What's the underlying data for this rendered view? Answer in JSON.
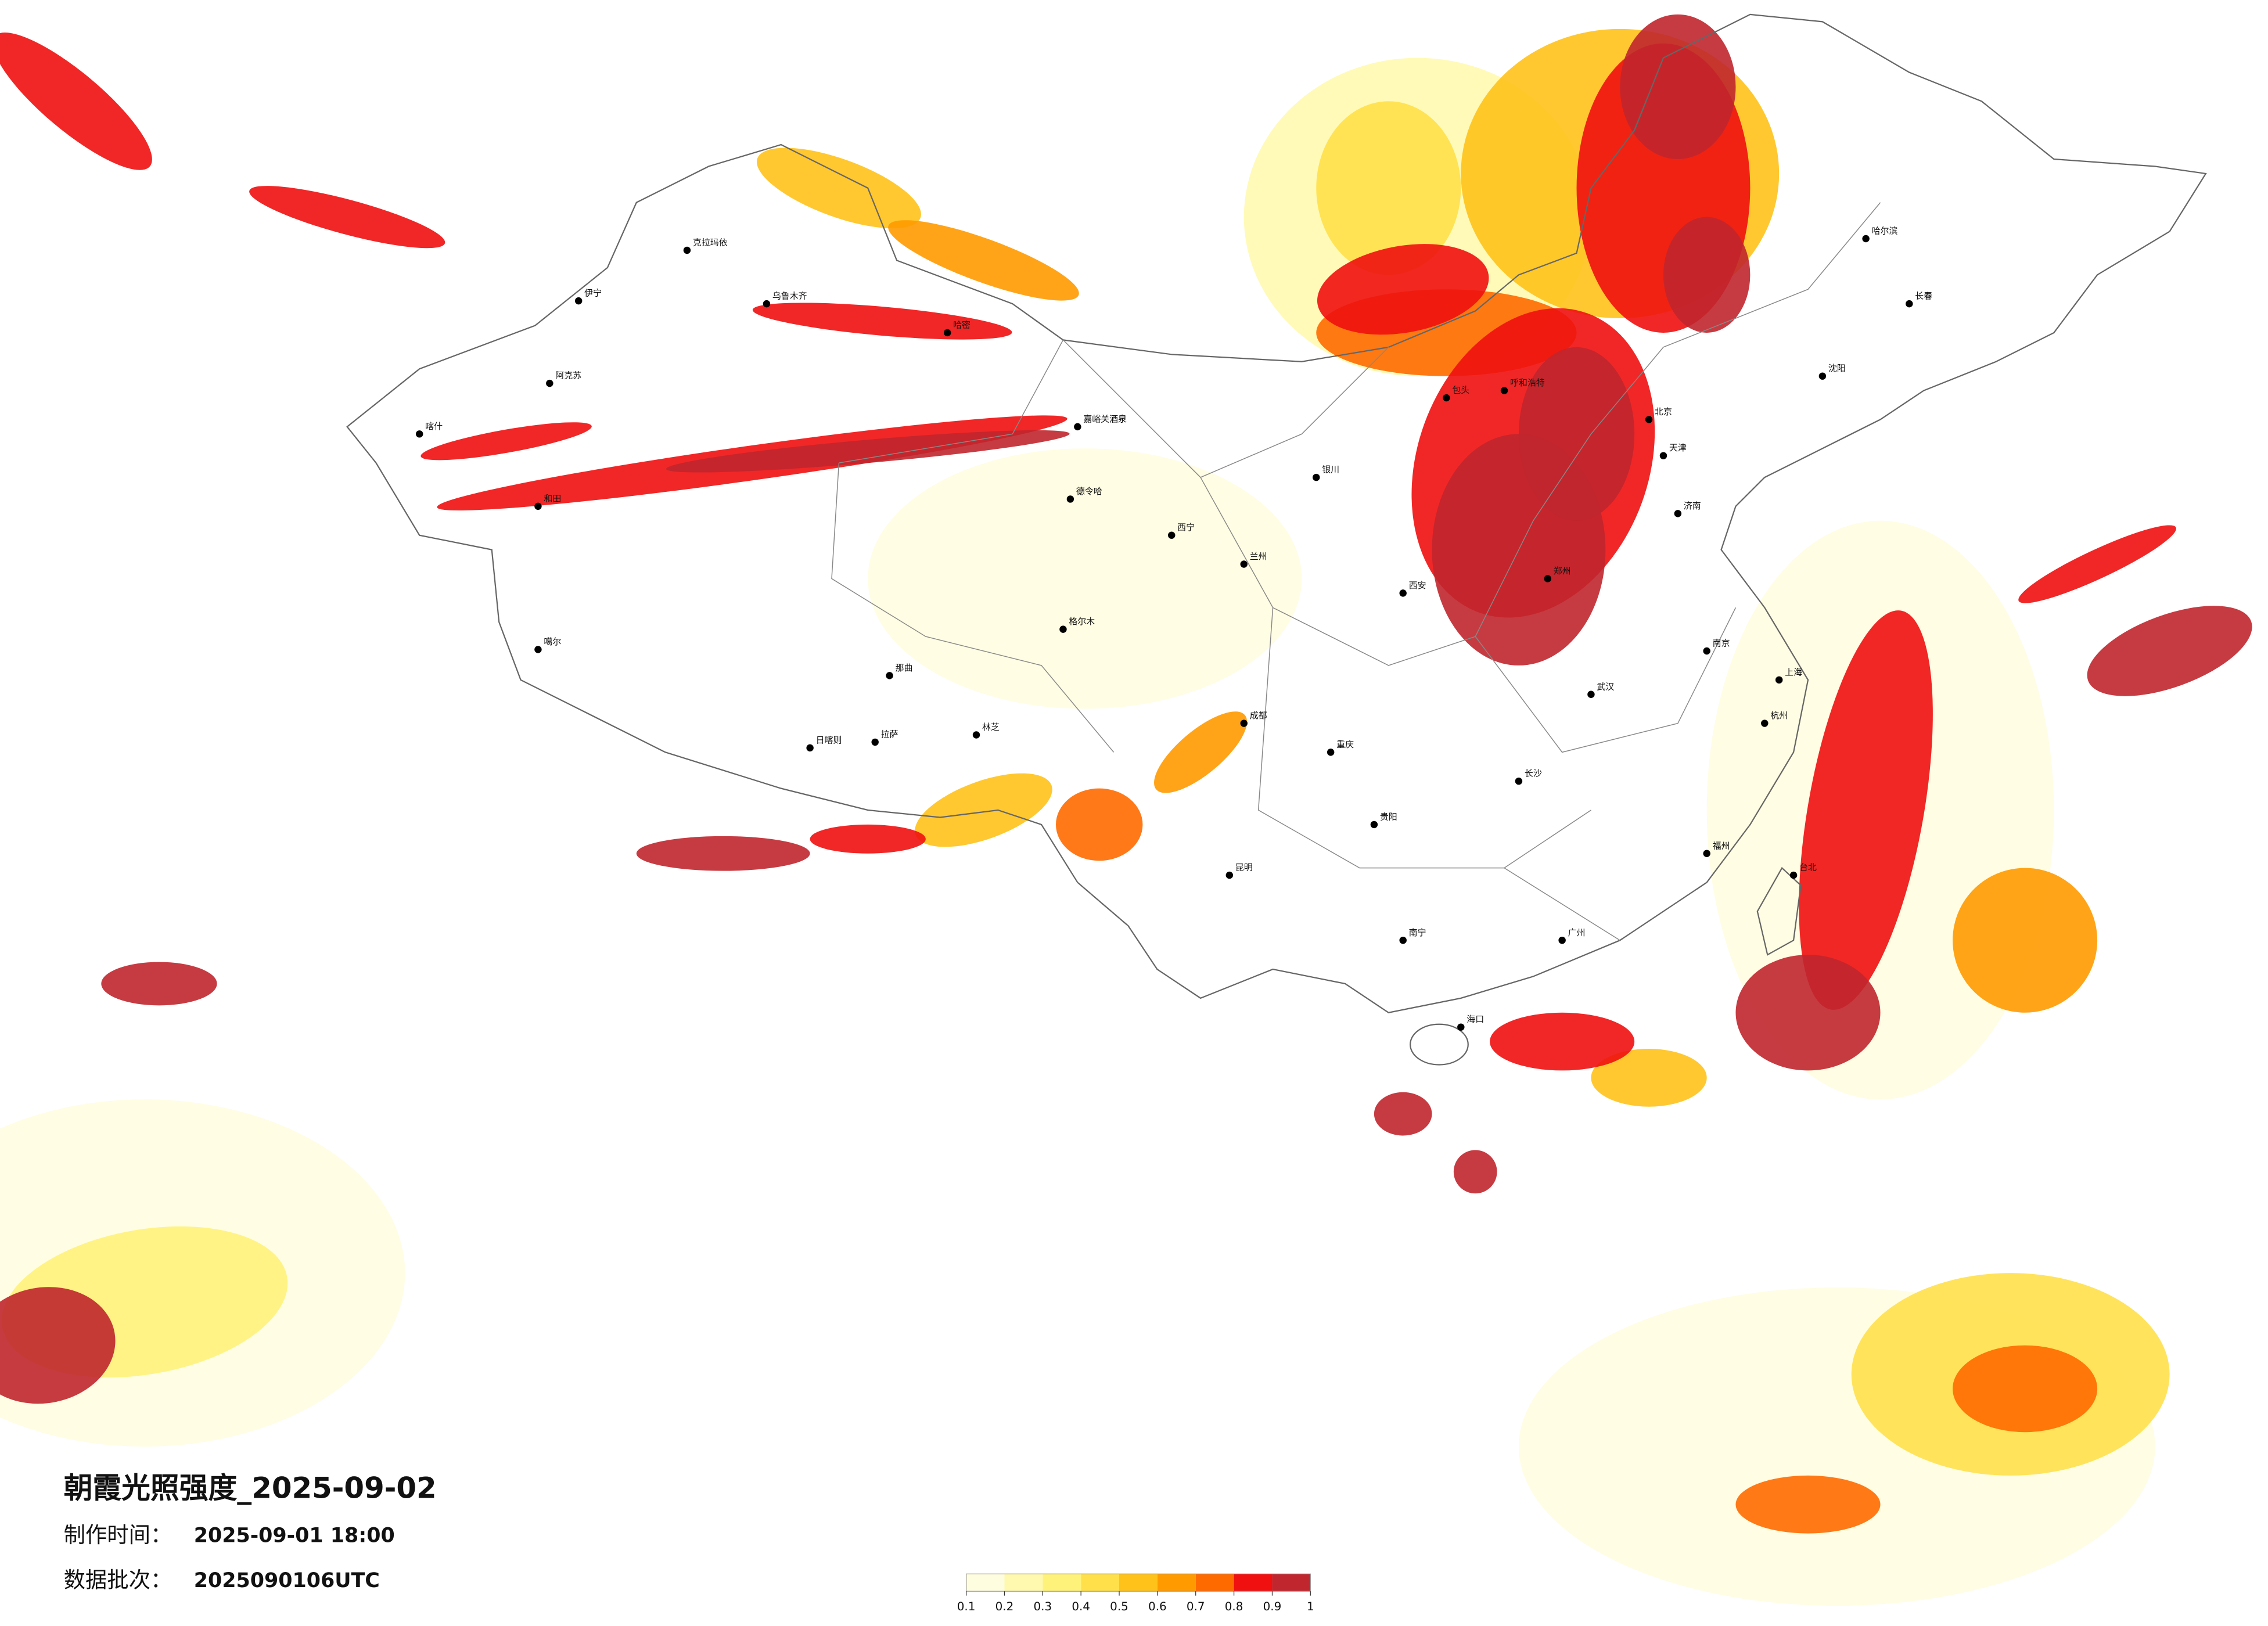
{
  "map": {
    "title": "朝霞光照强度_2025-09-02",
    "info": [
      {
        "label": "制作时间：",
        "value": "2025-09-01 18:00"
      },
      {
        "label": "数据批次：",
        "value": "2025090106UTC"
      }
    ],
    "colorbar": {
      "ticks": [
        0.1,
        0.2,
        0.3,
        0.4,
        0.5,
        0.6,
        0.7,
        0.8,
        0.9,
        1
      ],
      "colors": [
        "#fffde0",
        "#fff9b0",
        "#fff27a",
        "#ffe04a",
        "#ffc21a",
        "#ff9a00",
        "#ff6a00",
        "#f01010",
        "#c0262e"
      ]
    },
    "cities": [
      "克拉玛依",
      "伊宁",
      "阿克苏",
      "喀什",
      "和田",
      "乌鲁木齐",
      "哈密",
      "嘉峪关酒泉",
      "德令哈",
      "格尔木",
      "那曲",
      "拉萨",
      "林芝",
      "日喀则",
      "噶尔",
      "呼和浩特",
      "包头",
      "北京",
      "天津",
      "西安",
      "郑州",
      "济南",
      "成都",
      "重庆",
      "昆明",
      "贵阳",
      "南宁",
      "海口",
      "广州",
      "长沙",
      "武汉",
      "南京",
      "上海",
      "杭州",
      "福州",
      "台北",
      "哈尔滨",
      "长春",
      "沈阳",
      "兰州",
      "银川",
      "西宁"
    ]
  }
}
